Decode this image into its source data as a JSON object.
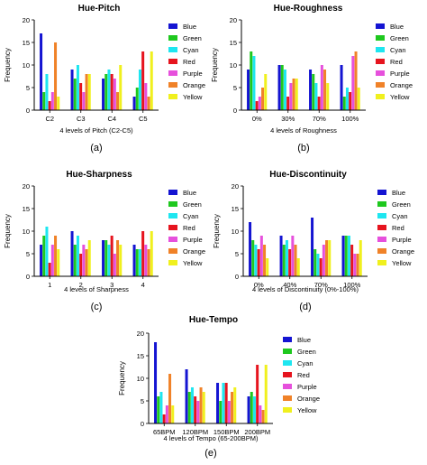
{
  "colors": {
    "Blue": "#1414d2",
    "Green": "#1ec81e",
    "Cyan": "#1ee6f0",
    "Red": "#e6141e",
    "Purple": "#e650dc",
    "Orange": "#f08228",
    "Yellow": "#f0f01e"
  },
  "chart_data": [
    {
      "type": "bar",
      "title": "Hue-Pitch",
      "xlabel": "4 levels of Pitch (C2-C5)",
      "ylabel": "Frequency",
      "caption": "(a)",
      "ylim": [
        0,
        20
      ],
      "yticks": [
        0,
        5,
        10,
        15,
        20
      ],
      "legend": "right",
      "categories": [
        "C2",
        "C3",
        "C4",
        "C5"
      ],
      "series": [
        {
          "name": "Blue",
          "values": [
            17,
            9,
            7,
            3
          ]
        },
        {
          "name": "Green",
          "values": [
            4,
            7,
            8,
            5
          ]
        },
        {
          "name": "Cyan",
          "values": [
            8,
            10,
            9,
            9
          ]
        },
        {
          "name": "Red",
          "values": [
            2,
            6,
            8,
            13
          ]
        },
        {
          "name": "Purple",
          "values": [
            4,
            4,
            7,
            6
          ]
        },
        {
          "name": "Orange",
          "values": [
            15,
            8,
            4,
            3
          ]
        },
        {
          "name": "Yellow",
          "values": [
            3,
            8,
            10,
            13
          ]
        }
      ]
    },
    {
      "type": "bar",
      "title": "Hue-Roughness",
      "xlabel": "4 levels of Roughness",
      "ylabel": "Frequency",
      "caption": "(b)",
      "ylim": [
        0,
        20
      ],
      "yticks": [
        0,
        5,
        10,
        15,
        20
      ],
      "legend": "right",
      "categories": [
        "0%",
        "30%",
        "70%",
        "100%"
      ],
      "series": [
        {
          "name": "Blue",
          "values": [
            9,
            10,
            9,
            10
          ]
        },
        {
          "name": "Green",
          "values": [
            13,
            10,
            8,
            3
          ]
        },
        {
          "name": "Cyan",
          "values": [
            12,
            9,
            6,
            5
          ]
        },
        {
          "name": "Red",
          "values": [
            2,
            3,
            3,
            4
          ]
        },
        {
          "name": "Purple",
          "values": [
            3,
            6,
            10,
            12
          ]
        },
        {
          "name": "Orange",
          "values": [
            5,
            7,
            9,
            13
          ]
        },
        {
          "name": "Yellow",
          "values": [
            8,
            7,
            6,
            5
          ]
        }
      ]
    },
    {
      "type": "bar",
      "title": "Hue-Sharpness",
      "xlabel": "4 levels of Sharpness",
      "ylabel": "Frequency",
      "caption": "(c)",
      "ylim": [
        0,
        20
      ],
      "yticks": [
        0,
        5,
        10,
        15,
        20
      ],
      "legend": "right",
      "categories": [
        "1",
        "2",
        "3",
        "4"
      ],
      "series": [
        {
          "name": "Blue",
          "values": [
            7,
            10,
            8,
            7
          ]
        },
        {
          "name": "Green",
          "values": [
            9,
            7,
            8,
            6
          ]
        },
        {
          "name": "Cyan",
          "values": [
            11,
            9,
            7,
            6
          ]
        },
        {
          "name": "Red",
          "values": [
            3,
            5,
            9,
            10
          ]
        },
        {
          "name": "Purple",
          "values": [
            7,
            7,
            5,
            7
          ]
        },
        {
          "name": "Orange",
          "values": [
            9,
            6,
            8,
            6
          ]
        },
        {
          "name": "Yellow",
          "values": [
            6,
            8,
            7,
            10
          ]
        }
      ]
    },
    {
      "type": "bar",
      "title": "Hue-Discontinuity",
      "xlabel": "4 levels of Discontinuity (0%-100%)",
      "ylabel": "Frequency",
      "caption": "(d)",
      "ylim": [
        0,
        20
      ],
      "yticks": [
        0,
        5,
        10,
        15,
        20
      ],
      "legend": "right",
      "categories": [
        "0%",
        "40%",
        "70%",
        "100%"
      ],
      "series": [
        {
          "name": "Blue",
          "values": [
            12,
            9,
            13,
            9
          ]
        },
        {
          "name": "Green",
          "values": [
            8,
            7,
            6,
            9
          ]
        },
        {
          "name": "Cyan",
          "values": [
            7,
            8,
            5,
            9
          ]
        },
        {
          "name": "Red",
          "values": [
            6,
            6,
            4,
            7
          ]
        },
        {
          "name": "Purple",
          "values": [
            9,
            9,
            7,
            5
          ]
        },
        {
          "name": "Orange",
          "values": [
            7,
            7,
            8,
            5
          ]
        },
        {
          "name": "Yellow",
          "values": [
            4,
            4,
            8,
            8
          ]
        }
      ]
    },
    {
      "type": "bar",
      "title": "Hue-Tempo",
      "xlabel": "4 levels of Tempo (65-200BPM)",
      "ylabel": "Frequency",
      "caption": "(e)",
      "ylim": [
        0,
        20
      ],
      "yticks": [
        0,
        5,
        10,
        15,
        20
      ],
      "legend": "right",
      "categories": [
        "65BPM",
        "120BPM",
        "150BPM",
        "200BPM"
      ],
      "series": [
        {
          "name": "Blue",
          "values": [
            18,
            12,
            9,
            6
          ]
        },
        {
          "name": "Green",
          "values": [
            6,
            7,
            5,
            7
          ]
        },
        {
          "name": "Cyan",
          "values": [
            7,
            8,
            9,
            6
          ]
        },
        {
          "name": "Red",
          "values": [
            2,
            6,
            9,
            13
          ]
        },
        {
          "name": "Purple",
          "values": [
            4,
            5,
            5,
            4
          ]
        },
        {
          "name": "Orange",
          "values": [
            11,
            8,
            7,
            3
          ]
        },
        {
          "name": "Yellow",
          "values": [
            4,
            7,
            8,
            13
          ]
        }
      ]
    }
  ]
}
